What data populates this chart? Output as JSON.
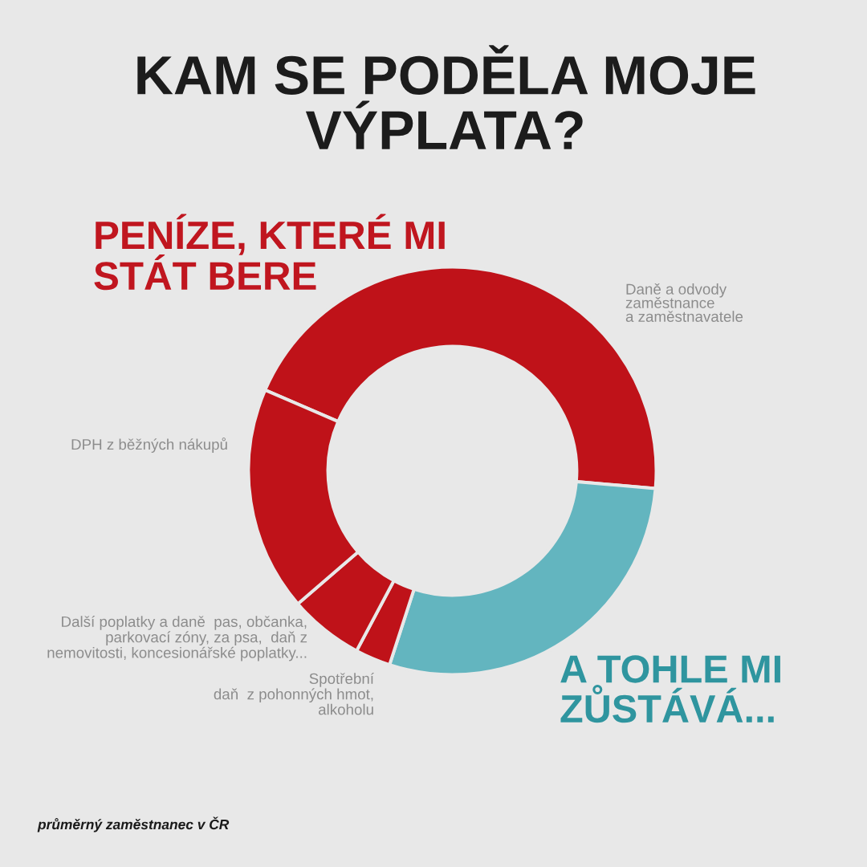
{
  "chart_data": {
    "type": "donut",
    "title": "KAM SE PODĚLA MOJE\nVÝPLATA?",
    "categories": [
      "Daně a odvody\nzaměstnance\na zaměstnavatele",
      "A TOHLE MI\nZŮSTÁVÁ...",
      "Spotřební\ndaň  z pohonných hmot,\nalkoholu",
      "Další poplatky a daně  pas, občanka,\nparkovací zóny, za psa,  daň z\nnemovitosti, koncesionářské poplatky...",
      "DPH z běžných nákupů"
    ],
    "values": [
      44.9,
      28.6,
      2.8,
      5.9,
      17.8
    ],
    "colors": [
      "#bf1219",
      "#63b5bf",
      "#bf1219",
      "#bf1219",
      "#bf1219"
    ],
    "annotations": [
      "PENÍZE, KTERÉ MI\nSTÁT BERE",
      "průměrný zaměstnanec v ČR"
    ]
  }
}
